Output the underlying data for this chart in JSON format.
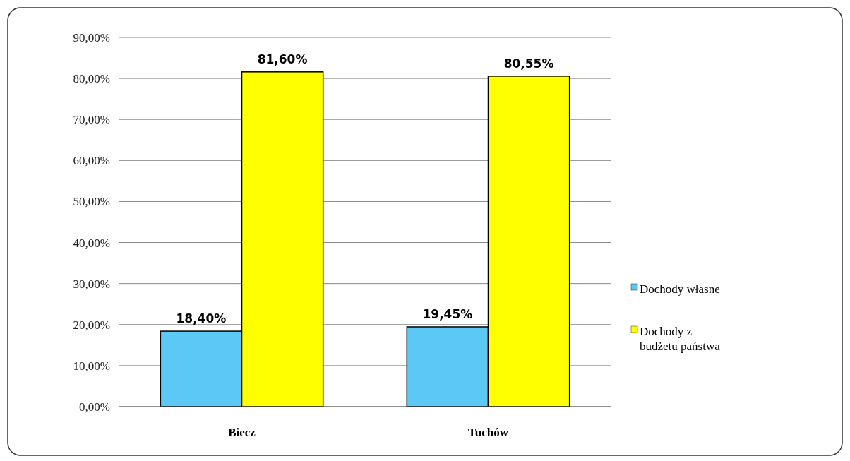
{
  "chart_data": {
    "type": "bar",
    "categories": [
      "Biecz",
      "Tuchów"
    ],
    "series": [
      {
        "name": "Dochody własne",
        "color": "#5bc8f5",
        "values": [
          18.4,
          19.45
        ],
        "value_labels": [
          "18,40%",
          "19,45%"
        ]
      },
      {
        "name": "Dochody z budżetu państwa",
        "color": "#ffff00",
        "values": [
          81.6,
          80.55
        ],
        "value_labels": [
          "81,60%",
          "80,55%"
        ]
      }
    ],
    "ylim": [
      0,
      90
    ],
    "yticks": [
      {
        "value": 0,
        "label": "0,00%"
      },
      {
        "value": 10,
        "label": "10,00%"
      },
      {
        "value": 20,
        "label": "20,00%"
      },
      {
        "value": 30,
        "label": "30,00%"
      },
      {
        "value": 40,
        "label": "40,00%"
      },
      {
        "value": 50,
        "label": "50,00%"
      },
      {
        "value": 60,
        "label": "60,00%"
      },
      {
        "value": 70,
        "label": "70,00%"
      },
      {
        "value": 80,
        "label": "80,00%"
      },
      {
        "value": 90,
        "label": "90,00%"
      }
    ],
    "grid": "y",
    "legend": "right"
  }
}
